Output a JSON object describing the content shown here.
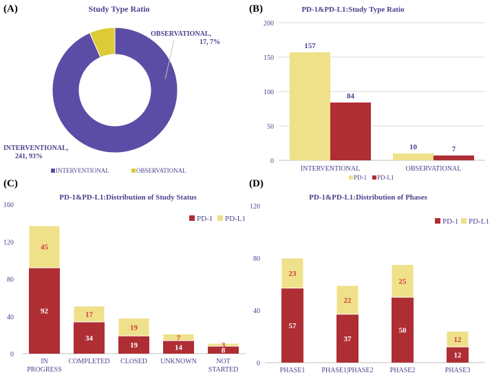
{
  "colors": {
    "purple": "#5B4DA5",
    "yellow": "#DCCB36",
    "pd1_yellow": "#EFE08A",
    "red": "#AE2E34",
    "text_blue": "#4B3F8C",
    "label_red": "#D43A3A",
    "grid": "#D9D9D9",
    "axis": "#BFBFBF"
  },
  "chart_data": [
    {
      "panel_label": "(A)",
      "type": "pie",
      "title": "Study Type Ratio",
      "slices": [
        {
          "name": "INTERVENTIONAL",
          "value": 241,
          "pct": "93%",
          "label": "INTERVENTIONAL,",
          "label2": "241, 93%"
        },
        {
          "name": "OBSERVATIONAL",
          "value": 17,
          "pct": "7%",
          "label": "OBSERVATIONAL,",
          "label2": "17, 7%"
        }
      ],
      "legend": [
        "INTERVENTIONAL",
        "OBSERVATIONAL"
      ]
    },
    {
      "panel_label": "(B)",
      "type": "bar",
      "title": "PD-1&PD-L1:Study Type Ratio",
      "categories": [
        "INTERVENTIONAL",
        "OBSERVATIONAL"
      ],
      "series": [
        {
          "name": "PD-1",
          "values": [
            157,
            10
          ]
        },
        {
          "name": "PD-L1",
          "values": [
            84,
            7
          ]
        }
      ],
      "ylim": [
        0,
        200
      ],
      "yticks": [
        "0",
        "50",
        "100",
        "150",
        "200"
      ],
      "legend": [
        "PD-1",
        "PD-L1"
      ]
    },
    {
      "panel_label": "(C)",
      "type": "bar",
      "stacked": true,
      "title": "PD-1&PD-L1:Distribution of Study Status",
      "categories": [
        [
          "IN",
          "PROGRESS"
        ],
        [
          "COMPLETED"
        ],
        [
          "CLOSED"
        ],
        [
          "UNKNOWN"
        ],
        [
          "NOT",
          "STARTED"
        ]
      ],
      "series": [
        {
          "name": "PD-1",
          "values": [
            92,
            34,
            19,
            14,
            8
          ]
        },
        {
          "name": "PD-L1",
          "values": [
            45,
            17,
            19,
            7,
            3
          ]
        }
      ],
      "ylim": [
        0,
        160
      ],
      "yticks": [
        "0",
        "40",
        "80",
        "120",
        "160"
      ],
      "legend": [
        "PD-1",
        "PD-L1"
      ]
    },
    {
      "panel_label": "(D)",
      "type": "bar",
      "stacked": true,
      "title": "PD-1&PD-L1:Distribution of Phases",
      "categories": [
        [
          "PHASE1"
        ],
        [
          "PHASE1|PHASE2"
        ],
        [
          "PHASE2"
        ],
        [
          "PHASE3"
        ]
      ],
      "series": [
        {
          "name": "PD-1",
          "values": [
            57,
            37,
            50,
            12
          ]
        },
        {
          "name": "PD-L1",
          "values": [
            23,
            22,
            25,
            12
          ]
        }
      ],
      "ylim": [
        0,
        120
      ],
      "yticks": [
        "0",
        "40",
        "80",
        "120"
      ],
      "legend": [
        "PD-1",
        "PD-L1"
      ]
    }
  ]
}
